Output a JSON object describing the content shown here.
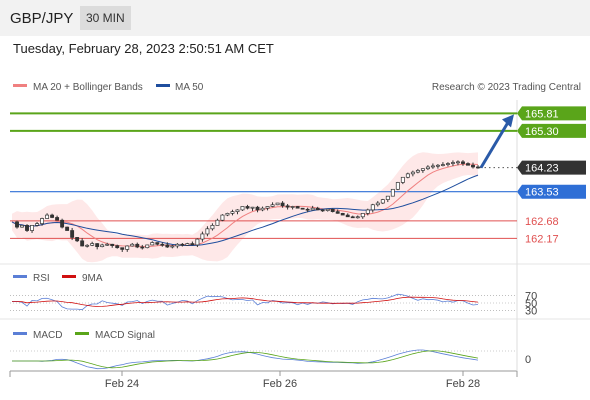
{
  "header": {
    "symbol": "GBP/JPY",
    "timeframe": "30 MIN",
    "datetime": "Tuesday, February 28, 2023 2:50:51 AM CET"
  },
  "legend": {
    "ma20": "MA 20 + Bollinger Bands",
    "ma50": "MA 50",
    "credit": "Research © 2023 Trading Central",
    "rsi": "RSI",
    "rsi_ma": "9MA",
    "macd": "MACD",
    "macd_signal": "MACD Signal"
  },
  "colors": {
    "ma20": "#f08080",
    "ma50": "#1f4e9e",
    "bands": "#fde0e0",
    "resistance": "#5aa51a",
    "support_blue": "#2f6fd6",
    "support_red": "#e05050",
    "price_tag": "#333333",
    "rsi": "#5b7fd6",
    "rsi_ma": "#d01010",
    "macd": "#5b7fd6",
    "macd_signal": "#5aa51a",
    "arrow": "#2a5aa8"
  },
  "chart_data": {
    "type": "candlestick",
    "x_labels": [
      "Feb 24",
      "Feb 26",
      "Feb 28"
    ],
    "ylim": [
      161.6,
      166.2
    ],
    "levels": [
      {
        "name": "resistance-2",
        "value": 165.81,
        "label": "165.81",
        "style": "green"
      },
      {
        "name": "resistance-1",
        "value": 165.3,
        "label": "165.30",
        "style": "green"
      },
      {
        "name": "last-price",
        "value": 164.23,
        "label": "164.23",
        "style": "dark"
      },
      {
        "name": "pivot",
        "value": 163.53,
        "label": "163.53",
        "style": "blue"
      },
      {
        "name": "support-1",
        "value": 162.68,
        "label": "162.68",
        "style": "red"
      },
      {
        "name": "support-2",
        "value": 162.17,
        "label": "162.17",
        "style": "red"
      }
    ],
    "forecast_arrow": {
      "from": 164.23,
      "to": 165.81,
      "direction": "up"
    },
    "rsi": {
      "levels": [
        70,
        50,
        30
      ]
    },
    "macd": {
      "zero_label": "0"
    },
    "price_path": [
      162.65,
      162.5,
      162.55,
      162.4,
      162.55,
      162.6,
      162.75,
      162.85,
      162.78,
      162.7,
      162.5,
      162.4,
      162.2,
      162.1,
      161.95,
      161.97,
      162.02,
      161.93,
      161.98,
      162.0,
      161.96,
      161.9,
      161.85,
      161.95,
      162.0,
      161.92,
      161.9,
      161.98,
      162.05,
      162.0,
      161.98,
      161.92,
      161.95,
      162.0,
      161.97,
      162.02,
      161.98,
      162.15,
      162.3,
      162.45,
      162.55,
      162.7,
      162.85,
      162.9,
      162.95,
      163.0,
      163.1,
      163.05,
      163.08,
      163.0,
      163.05,
      163.1,
      163.15,
      163.2,
      163.12,
      163.08,
      163.1,
      163.05,
      163.02,
      163.0,
      163.05,
      163.0,
      162.98,
      163.02,
      162.95,
      162.9,
      162.85,
      162.8,
      162.78,
      162.8,
      162.9,
      163.0,
      163.15,
      163.2,
      163.3,
      163.4,
      163.6,
      163.8,
      163.95,
      164.05,
      164.1,
      164.15,
      164.2,
      164.25,
      164.28,
      164.3,
      164.32,
      164.35,
      164.38,
      164.4,
      164.35,
      164.3,
      164.25,
      164.23
    ]
  }
}
